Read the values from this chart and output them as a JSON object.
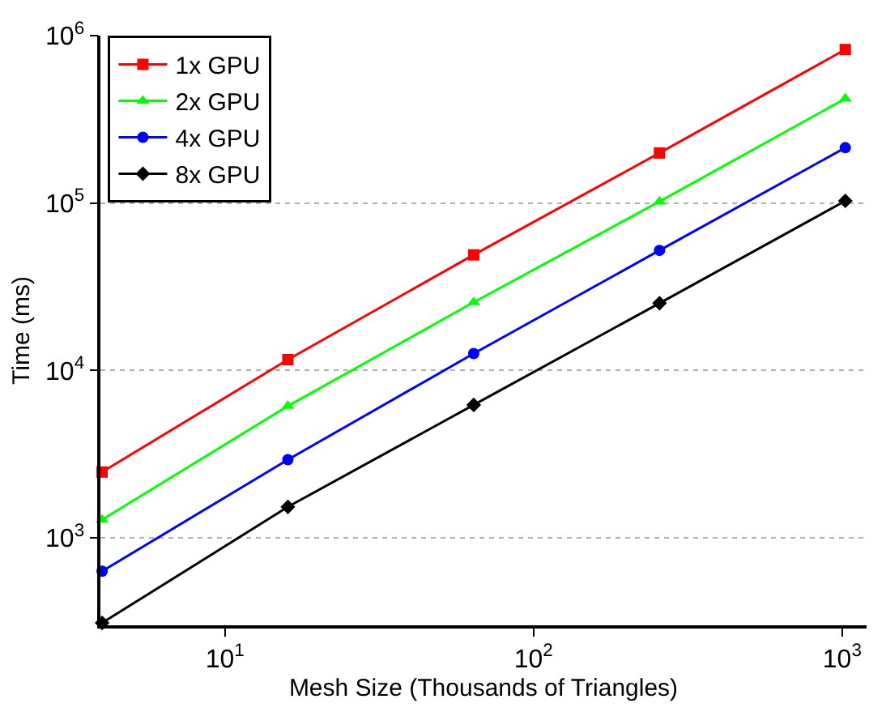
{
  "chart_data": {
    "type": "line",
    "xlabel": "Mesh Size (Thousands of Triangles)",
    "ylabel": "Time (ms)",
    "x": [
      4,
      16,
      64,
      256,
      1024
    ],
    "series": [
      {
        "name": "1x GPU",
        "color": "#ff0000",
        "marker": "square",
        "values": [
          2470,
          11600,
          49000,
          199000,
          826000
        ]
      },
      {
        "name": "2x GPU",
        "color": "#00ff00",
        "marker": "triangle",
        "values": [
          1280,
          6120,
          25500,
          102000,
          420000
        ]
      },
      {
        "name": "4x GPU",
        "color": "#0000ff",
        "marker": "circle",
        "values": [
          631,
          2930,
          12600,
          52100,
          214000
        ]
      },
      {
        "name": "8x GPU",
        "color": "#000000",
        "marker": "diamond",
        "values": [
          310,
          1530,
          6220,
          25200,
          103000
        ]
      }
    ],
    "log": "xy",
    "xlim": [
      3.95,
      1200
    ],
    "ylim": [
      300,
      1000000
    ],
    "xticks": [
      {
        "value": 10,
        "label": "10$^{1}$"
      },
      {
        "value": 100,
        "label": "10$^{2}$"
      },
      {
        "value": 1000,
        "label": "10$^{3}$"
      }
    ],
    "yticks": [
      {
        "value": 1000,
        "label": "10$^{3}$"
      },
      {
        "value": 10000,
        "label": "10$^{4}$"
      },
      {
        "value": 100000,
        "label": "10$^{5}$"
      },
      {
        "value": 1000000,
        "label": "10$^{6}$"
      }
    ],
    "grid": "y",
    "legend": "top left",
    "line_style": "solid"
  }
}
